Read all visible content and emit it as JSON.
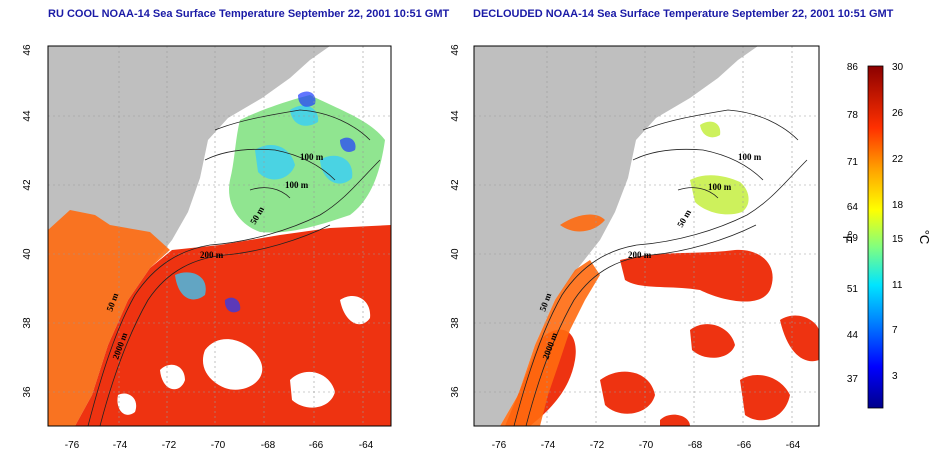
{
  "panels": [
    {
      "title": "RU COOL NOAA-14 Sea Surface Temperature September 22, 2001 10:51 GMT",
      "lat_ticks": [
        "46",
        "44",
        "42",
        "40",
        "38",
        "36"
      ],
      "lon_ticks": [
        "-76",
        "-74",
        "-72",
        "-70",
        "-68",
        "-66",
        "-64"
      ],
      "contour_labels": [
        "100 m",
        "100 m",
        "50 m",
        "200 m",
        "50 m",
        "2000 m"
      ]
    },
    {
      "title": "DECLOUDED NOAA-14 Sea Surface Temperature September 22, 2001 10:51 GMT",
      "lat_ticks": [
        "46",
        "44",
        "42",
        "40",
        "38",
        "36"
      ],
      "lon_ticks": [
        "-76",
        "-74",
        "-72",
        "-70",
        "-68",
        "-66",
        "-64"
      ],
      "contour_labels": [
        "100 m",
        "100 m",
        "50 m",
        "200 m",
        "50 m",
        "2000 m"
      ]
    }
  ],
  "colorbar": {
    "fahrenheit_ticks": [
      "86",
      "78",
      "71",
      "64",
      "59",
      "51",
      "44",
      "37"
    ],
    "celsius_ticks": [
      "30",
      "26",
      "22",
      "18",
      "15",
      "11",
      "7",
      "3"
    ],
    "fahrenheit_unit": "°F",
    "celsius_unit": "°C",
    "colors": [
      "#00008b",
      "#0000ff",
      "#0080ff",
      "#00ffff",
      "#80ff80",
      "#ffff00",
      "#ff8000",
      "#ff0000",
      "#8b0000"
    ]
  },
  "map_colors": {
    "land": "#bfbfbf",
    "cloud": "#ffffff",
    "warm": "#ee3311",
    "orange": "#ff6a10"
  }
}
